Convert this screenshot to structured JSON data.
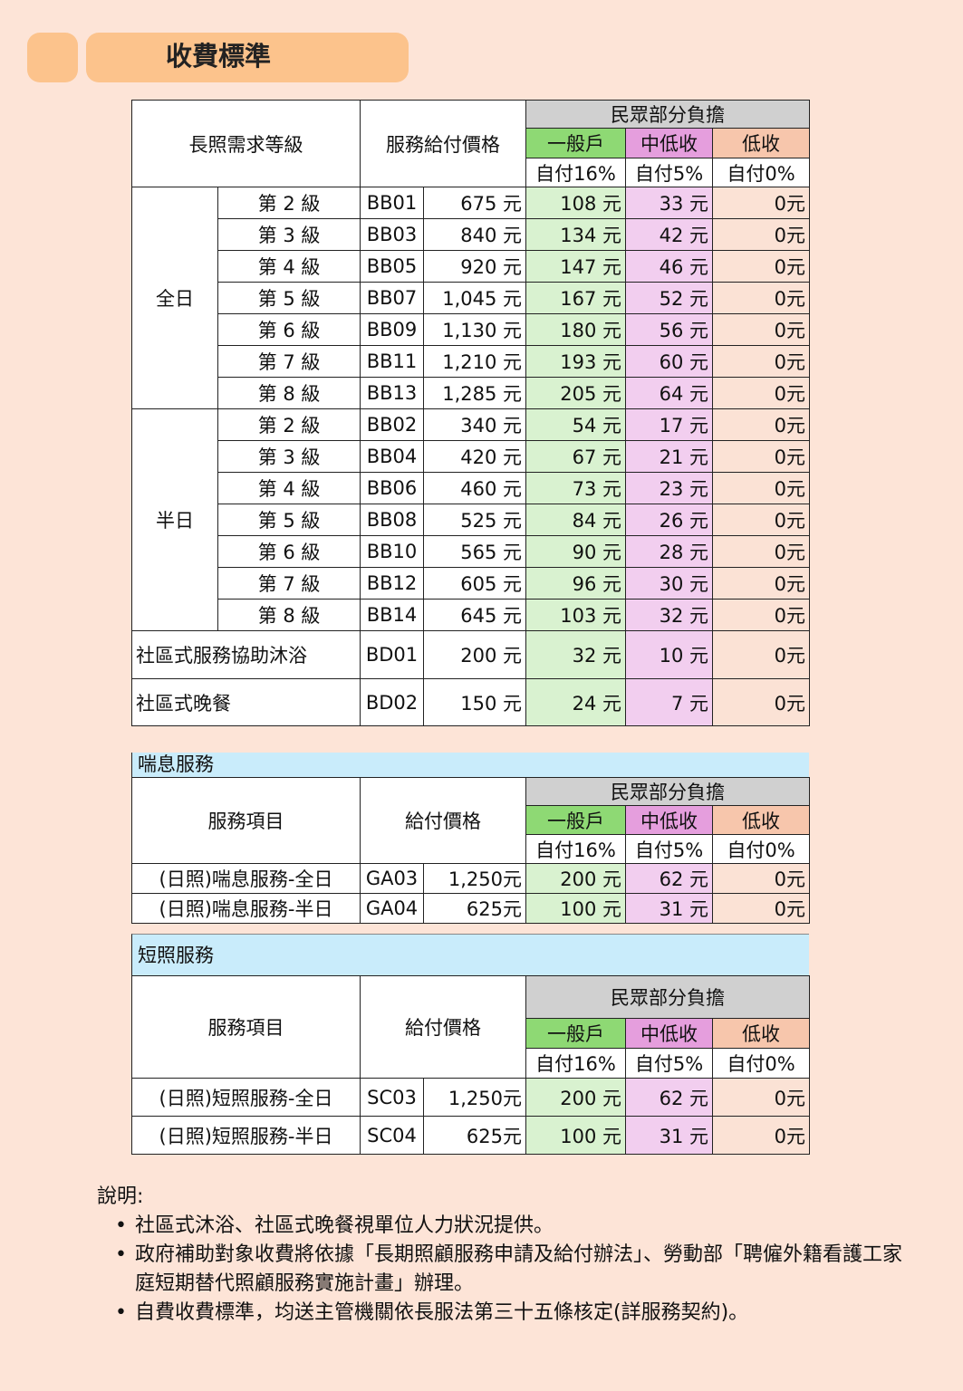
{
  "title": "收費標準",
  "headers": {
    "level": "長照需求等級",
    "price": "服務給付價格",
    "share": "民眾部分負擔",
    "general": "一般戶",
    "midlow": "中低收",
    "low": "低收",
    "general_rate": "自付16%",
    "midlow_rate": "自付5%",
    "low_rate": "自付0%",
    "item": "服務項目",
    "pay_price": "給付價格"
  },
  "main_table": {
    "groups": [
      {
        "label": "全日",
        "rows": [
          [
            "第 2 級",
            "BB01",
            "675 元",
            "108 元",
            "33 元",
            "0元"
          ],
          [
            "第 3 級",
            "BB03",
            "840 元",
            "134 元",
            "42 元",
            "0元"
          ],
          [
            "第 4 級",
            "BB05",
            "920 元",
            "147 元",
            "46 元",
            "0元"
          ],
          [
            "第 5 級",
            "BB07",
            "1,045 元",
            "167 元",
            "52 元",
            "0元"
          ],
          [
            "第 6 級",
            "BB09",
            "1,130 元",
            "180 元",
            "56 元",
            "0元"
          ],
          [
            "第 7 級",
            "BB11",
            "1,210 元",
            "193 元",
            "60 元",
            "0元"
          ],
          [
            "第 8 級",
            "BB13",
            "1,285 元",
            "205 元",
            "64 元",
            "0元"
          ]
        ]
      },
      {
        "label": "半日",
        "rows": [
          [
            "第 2 級",
            "BB02",
            "340 元",
            "54 元",
            "17 元",
            "0元"
          ],
          [
            "第 3 級",
            "BB04",
            "420 元",
            "67 元",
            "21 元",
            "0元"
          ],
          [
            "第 4 級",
            "BB06",
            "460 元",
            "73 元",
            "23 元",
            "0元"
          ],
          [
            "第 5 級",
            "BB08",
            "525 元",
            "84 元",
            "26 元",
            "0元"
          ],
          [
            "第 6 級",
            "BB10",
            "565 元",
            "90 元",
            "28 元",
            "0元"
          ],
          [
            "第 7 級",
            "BB12",
            "605 元",
            "96 元",
            "30 元",
            "0元"
          ],
          [
            "第 8 級",
            "BB14",
            "645 元",
            "103 元",
            "32 元",
            "0元"
          ]
        ]
      }
    ],
    "extra_rows": [
      [
        "社區式服務協助沐浴",
        "BD01",
        "200 元",
        "32 元",
        "10 元",
        "0元"
      ],
      [
        "社區式晚餐",
        "BD02",
        "150 元",
        "24 元",
        "7 元",
        "0元"
      ]
    ]
  },
  "respite": {
    "title": "喘息服務",
    "rows": [
      [
        "(日照)喘息服務-全日",
        "GA03",
        "1,250元",
        "200 元",
        "62 元",
        "0元"
      ],
      [
        "(日照)喘息服務-半日",
        "GA04",
        "625元",
        "100 元",
        "31 元",
        "0元"
      ]
    ]
  },
  "short_care": {
    "title": "短照服務",
    "rows": [
      [
        "(日照)短照服務-全日",
        "SC03",
        "1,250元",
        "200 元",
        "62 元",
        "0元"
      ],
      [
        "(日照)短照服務-半日",
        "SC04",
        "625元",
        "100 元",
        "31 元",
        "0元"
      ]
    ]
  },
  "notes": {
    "heading": "說明:",
    "items": [
      "社區式沐浴、社區式晚餐視單位人力狀況提供。",
      "政府補助對象收費將依據「長期照顧服務申請及給付辦法」、勞動部「聘僱外籍看護工家庭短期替代照顧服務實施計畫」辦理。",
      "自費收費標準，均送主管機關依長服法第三十五條核定(詳服務契約)。"
    ]
  },
  "colors": {
    "background": "#fde4d7",
    "title_pill": "#fcc38c",
    "general": "#8ed974",
    "midlow": "#e59edd",
    "low": "#f7c6ac",
    "section_bar": "#c9ecfb"
  }
}
